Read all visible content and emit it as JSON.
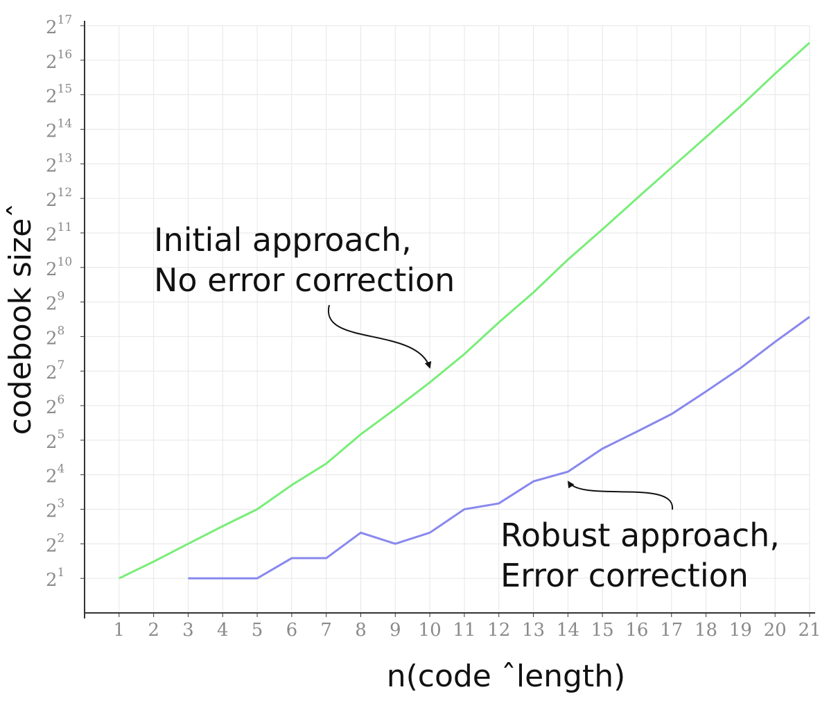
{
  "chart_data": {
    "type": "line",
    "x_label": "n(code ˆlength)",
    "y_label": "codebook sizeˆ",
    "x": [
      1,
      2,
      3,
      4,
      5,
      6,
      7,
      8,
      9,
      10,
      11,
      12,
      13,
      14,
      15,
      16,
      17,
      18,
      19,
      20,
      21
    ],
    "series": [
      {
        "color": "#77ee77",
        "values": [
          2,
          2.8,
          4,
          5.7,
          8,
          13,
          20,
          36,
          60,
          102,
          180,
          340,
          620,
          1200,
          2200,
          4100,
          7600,
          14000,
          26000,
          50000,
          93000
        ]
      },
      {
        "color": "#8888ee",
        "values": [
          null,
          null,
          2,
          2,
          2,
          3,
          3,
          5,
          4,
          5,
          8,
          9,
          14,
          17,
          27,
          38,
          54,
          85,
          136,
          230,
          380
        ]
      }
    ],
    "xlim": [
      0,
      21
    ],
    "xticks": [
      1,
      2,
      3,
      4,
      5,
      6,
      7,
      8,
      9,
      10,
      11,
      12,
      13,
      14,
      15,
      16,
      17,
      18,
      19,
      20,
      21
    ],
    "ylim": [
      1,
      131072
    ],
    "yscale": "log",
    "yticks": [
      {
        "value": 2,
        "label": "2",
        "exponent": "1"
      },
      {
        "value": 4,
        "label": "2",
        "exponent": "2"
      },
      {
        "value": 8,
        "label": "2",
        "exponent": "3"
      },
      {
        "value": 16,
        "label": "2",
        "exponent": "4"
      },
      {
        "value": 32,
        "label": "2",
        "exponent": "5"
      },
      {
        "value": 64,
        "label": "2",
        "exponent": "6"
      },
      {
        "value": 128,
        "label": "2",
        "exponent": "7"
      },
      {
        "value": 256,
        "label": "2",
        "exponent": "8"
      },
      {
        "value": 512,
        "label": "2",
        "exponent": "9"
      },
      {
        "value": 1024,
        "label": "2",
        "exponent": "10"
      },
      {
        "value": 2048,
        "label": "2",
        "exponent": "11"
      },
      {
        "value": 4096,
        "label": "2",
        "exponent": "12"
      },
      {
        "value": 8192,
        "label": "2",
        "exponent": "13"
      },
      {
        "value": 16384,
        "label": "2",
        "exponent": "14"
      },
      {
        "value": 32768,
        "label": "2",
        "exponent": "15"
      },
      {
        "value": 65536,
        "label": "2",
        "exponent": "16"
      },
      {
        "value": 131072,
        "label": "2",
        "exponent": "17"
      }
    ],
    "grid": true,
    "annotations": [
      {
        "lines": [
          "Initial approach,",
          "No error correction"
        ]
      },
      {
        "lines": [
          "Robust approach,",
          "Error correction"
        ]
      }
    ]
  }
}
